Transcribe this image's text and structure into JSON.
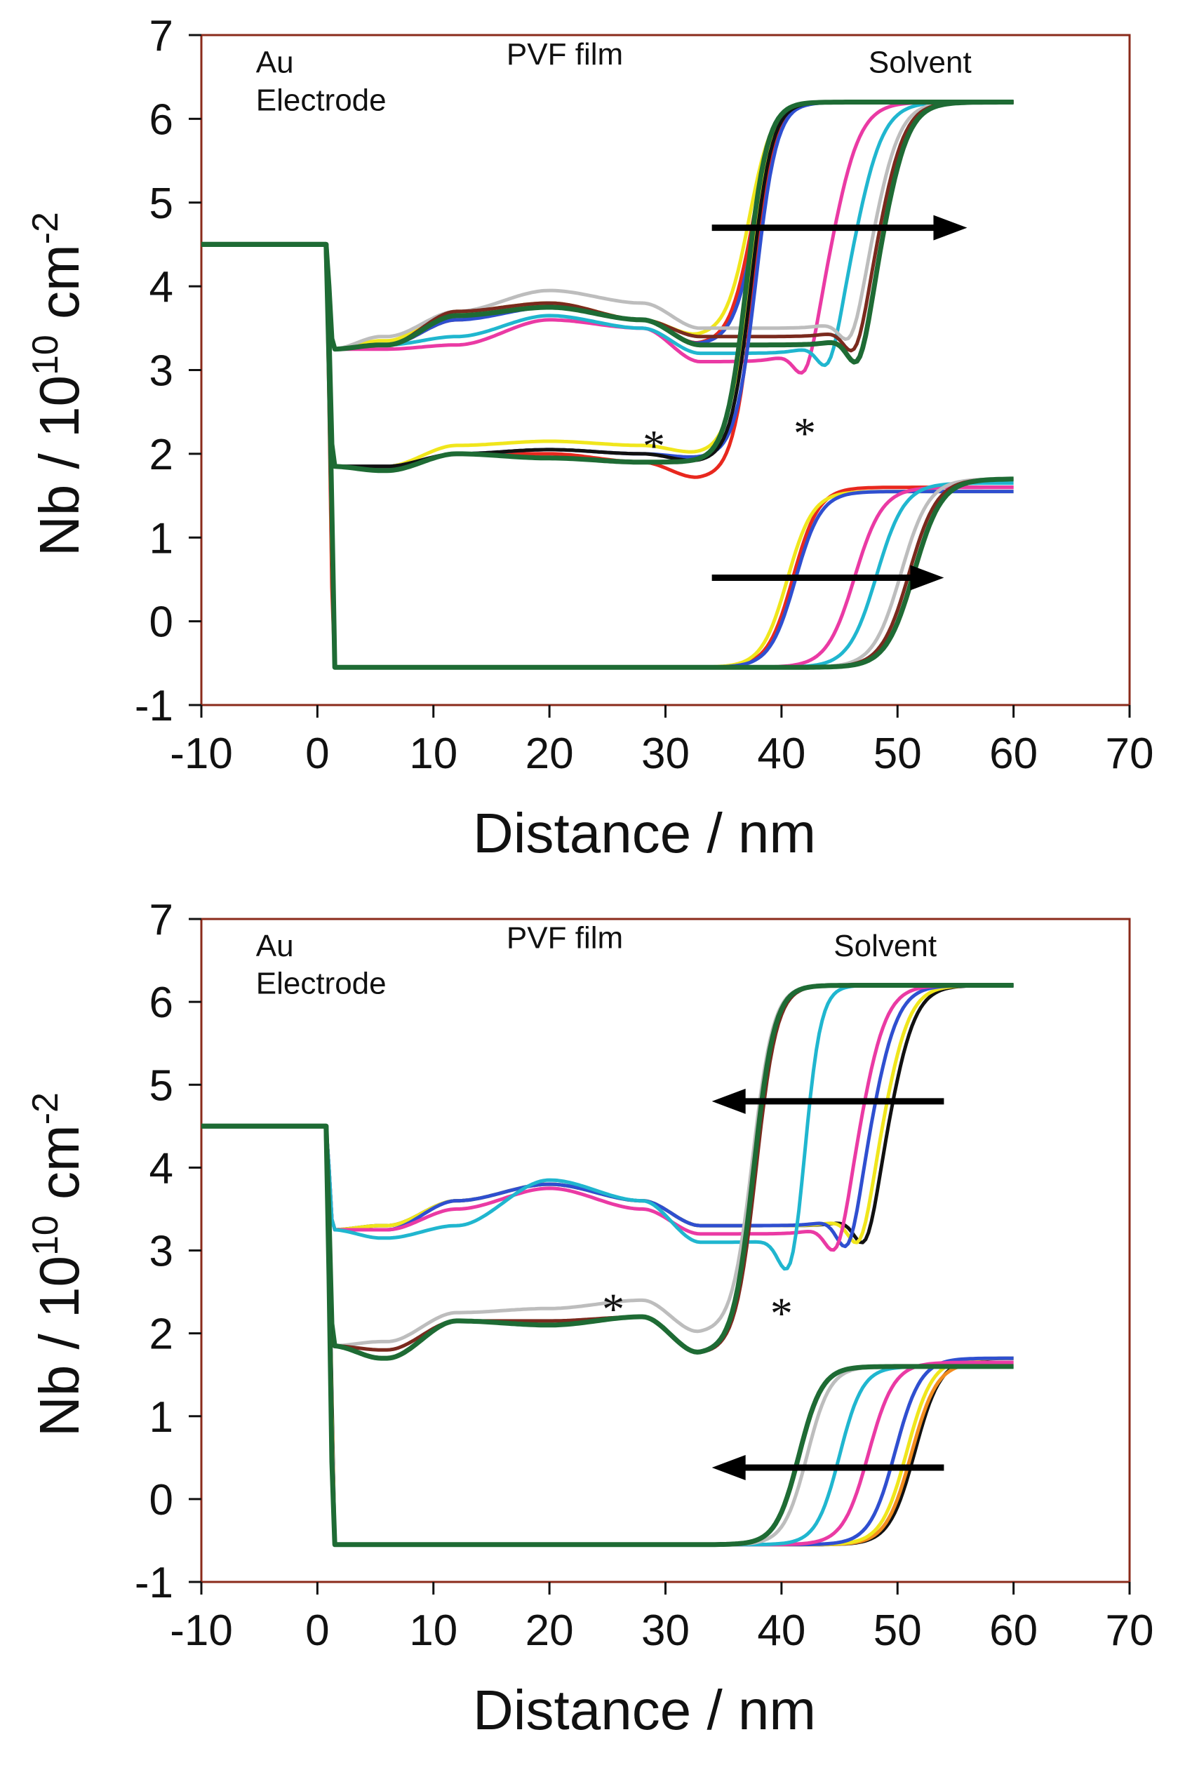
{
  "figure": "Two-panel neutron reflectivity SLD profiles of a PVF film on an Au electrode",
  "colors": {
    "red": "#e8281e",
    "black": "#111111",
    "orange": "#f28c1e",
    "yellow": "#f0e61c",
    "blue": "#2f4fd0",
    "magenta": "#ea3aa4",
    "cyan": "#20b6cf",
    "gray": "#bdbdbd",
    "brown": "#7a2a1e",
    "green": "#1e6b34"
  },
  "chart_data": [
    {
      "type": "line",
      "panel": "top",
      "xlabel": "Distance / nm",
      "ylabel": "Nb / 10",
      "ylabel_sup": "10",
      "ylabel_unit": " cm",
      "ylabel_unit_sup": "-2",
      "xlim": [
        -10,
        70
      ],
      "ylim": [
        -1,
        7
      ],
      "xticks": [
        "-10",
        "0",
        "10",
        "20",
        "30",
        "40",
        "50",
        "60",
        "70"
      ],
      "yticks": [
        "-1",
        "0",
        "1",
        "2",
        "3",
        "4",
        "5",
        "6",
        "7"
      ],
      "regions": {
        "electrode_line1": "Au",
        "electrode_line2": "Electrode",
        "film": "PVF film",
        "solvent": "Solvent"
      },
      "markers": [
        {
          "text": "*",
          "x": 29,
          "y": 2.25
        },
        {
          "text": "*",
          "x": 42,
          "y": 2.4
        }
      ],
      "arrows": [
        {
          "direction": "right",
          "x_start": 34,
          "x_end": 56,
          "y": 4.7
        },
        {
          "direction": "right",
          "x_start": 34,
          "x_end": 54,
          "y": 0.52
        }
      ],
      "curves": [
        {
          "family": "upper",
          "color": "red",
          "s": 37.5,
          "d": 1.0,
          "mid": [
            3.3,
            3.6,
            3.8,
            3.6,
            3.3
          ],
          "dip": 0
        },
        {
          "family": "upper",
          "color": "yellow",
          "s": 37.2,
          "d": 1.0,
          "mid": [
            3.35,
            3.7,
            3.8,
            3.6,
            3.4
          ],
          "dip": 0
        },
        {
          "family": "upper",
          "color": "blue",
          "s": 37.8,
          "d": 1.0,
          "mid": [
            3.3,
            3.6,
            3.75,
            3.6,
            3.3
          ],
          "dip": 0
        },
        {
          "family": "upper",
          "color": "magenta",
          "s": 44.5,
          "d": 1.2,
          "mid": [
            3.25,
            3.3,
            3.6,
            3.5,
            3.1
          ],
          "dip": 0.45
        },
        {
          "family": "upper",
          "color": "cyan",
          "s": 46.5,
          "d": 1.2,
          "mid": [
            3.3,
            3.4,
            3.65,
            3.5,
            3.2
          ],
          "dip": 0.45
        },
        {
          "family": "upper",
          "color": "gray",
          "s": 48.2,
          "d": 1.1,
          "mid": [
            3.4,
            3.7,
            3.95,
            3.8,
            3.5
          ],
          "dip": 0.4
        },
        {
          "family": "upper",
          "color": "brown",
          "s": 48.6,
          "d": 1.1,
          "mid": [
            3.3,
            3.7,
            3.8,
            3.6,
            3.4
          ],
          "dip": 0.45
        },
        {
          "family": "upper",
          "color": "green",
          "s": 48.9,
          "d": 1.1,
          "mid": [
            3.3,
            3.65,
            3.75,
            3.6,
            3.3
          ],
          "dip": 0.5
        },
        {
          "family": "middle",
          "color": "red",
          "s": 37.6,
          "d": 0.9,
          "mid": [
            1.85,
            2.0,
            2.0,
            1.9,
            1.7
          ],
          "dip": 0
        },
        {
          "family": "middle",
          "color": "yellow",
          "s": 37.2,
          "d": 0.9,
          "mid": [
            1.85,
            2.1,
            2.15,
            2.1,
            2.0
          ],
          "dip": 0
        },
        {
          "family": "middle",
          "color": "blue",
          "s": 37.8,
          "d": 0.9,
          "mid": [
            1.85,
            2.0,
            2.05,
            2.0,
            1.95
          ],
          "dip": 0
        },
        {
          "family": "middle",
          "color": "black",
          "s": 37.4,
          "d": 0.9,
          "mid": [
            1.85,
            2.0,
            2.05,
            2.0,
            1.9
          ],
          "dip": 0
        },
        {
          "family": "middle",
          "color": "green",
          "s": 37.0,
          "d": 0.9,
          "mid": [
            1.8,
            2.0,
            1.95,
            1.9,
            1.9
          ],
          "dip": 0
        },
        {
          "family": "lower",
          "color": "red",
          "s": 41.0,
          "d": -1.1,
          "mid": [
            1.4,
            1.45,
            1.5,
            1.55,
            1.6
          ],
          "dip": 0,
          "s0": -0.05
        },
        {
          "family": "lower",
          "color": "yellow",
          "s": 40.5,
          "d": -1.1,
          "mid": [
            1.4,
            1.45,
            1.45,
            1.5,
            1.55
          ],
          "dip": 0,
          "s0": 0.45
        },
        {
          "family": "lower",
          "color": "blue",
          "s": 41.2,
          "d": -1.1,
          "mid": [
            1.4,
            1.45,
            1.45,
            1.5,
            1.55
          ],
          "dip": 0,
          "s0": 0.6
        },
        {
          "family": "lower",
          "color": "magenta",
          "s": 46.3,
          "d": -1.2,
          "mid": [
            1.35,
            1.35,
            1.45,
            1.5,
            1.6
          ],
          "dip": 0,
          "s0": 0.8
        },
        {
          "family": "lower",
          "color": "cyan",
          "s": 48.2,
          "d": -1.2,
          "mid": [
            1.35,
            1.35,
            1.45,
            1.5,
            1.65
          ],
          "dip": 0,
          "s0": 0.85
        },
        {
          "family": "lower",
          "color": "gray",
          "s": 50.3,
          "d": -1.2,
          "mid": [
            1.35,
            1.3,
            1.4,
            1.55,
            1.7
          ],
          "dip": 0,
          "s0": 0.9
        },
        {
          "family": "lower",
          "color": "brown",
          "s": 51.0,
          "d": -1.2,
          "mid": [
            1.3,
            1.25,
            1.3,
            1.5,
            1.7
          ],
          "dip": 0,
          "s0": 1.0
        },
        {
          "family": "lower",
          "color": "green",
          "s": 51.4,
          "d": -1.2,
          "mid": [
            1.3,
            1.2,
            1.2,
            1.5,
            1.7
          ],
          "dip": 0,
          "s0": 1.0
        }
      ]
    },
    {
      "type": "line",
      "panel": "bottom",
      "xlabel": "Distance / nm",
      "ylabel": "Nb / 10",
      "ylabel_sup": "10",
      "ylabel_unit": " cm",
      "ylabel_unit_sup": "-2",
      "xlim": [
        -10,
        70
      ],
      "ylim": [
        -1,
        7
      ],
      "xticks": [
        "-10",
        "0",
        "10",
        "20",
        "30",
        "40",
        "50",
        "60",
        "70"
      ],
      "yticks": [
        "-1",
        "0",
        "1",
        "2",
        "3",
        "4",
        "5",
        "6",
        "7"
      ],
      "regions": {
        "electrode_line1": "Au",
        "electrode_line2": "Electrode",
        "film": "PVF film",
        "solvent": "Solvent"
      },
      "markers": [
        {
          "text": "*",
          "x": 25.5,
          "y": 2.45
        },
        {
          "text": "*",
          "x": 40,
          "y": 2.4
        }
      ],
      "arrows": [
        {
          "direction": "left",
          "x_start": 54,
          "x_end": 34,
          "y": 4.8
        },
        {
          "direction": "left",
          "x_start": 54,
          "x_end": 34,
          "y": 0.38
        }
      ],
      "curves": [
        {
          "family": "upper",
          "color": "black",
          "s": 49.5,
          "d": 1.1,
          "mid": [
            3.3,
            3.6,
            3.8,
            3.6,
            3.3
          ],
          "dip": 0.5
        },
        {
          "family": "upper",
          "color": "yellow",
          "s": 49.0,
          "d": 1.1,
          "mid": [
            3.3,
            3.6,
            3.8,
            3.6,
            3.3
          ],
          "dip": 0.5
        },
        {
          "family": "upper",
          "color": "blue",
          "s": 48.0,
          "d": 1.1,
          "mid": [
            3.25,
            3.6,
            3.8,
            3.6,
            3.3
          ],
          "dip": 0.55
        },
        {
          "family": "upper",
          "color": "magenta",
          "s": 47.0,
          "d": 1.1,
          "mid": [
            3.25,
            3.5,
            3.75,
            3.5,
            3.2
          ],
          "dip": 0.5
        },
        {
          "family": "upper",
          "color": "cyan",
          "s": 42.2,
          "d": 0.7,
          "mid": [
            3.15,
            3.3,
            3.85,
            3.6,
            3.1
          ],
          "dip": 0.6
        },
        {
          "family": "middle",
          "color": "gray",
          "s": 37.5,
          "d": 0.9,
          "mid": [
            1.9,
            2.25,
            2.3,
            2.4,
            2.0
          ],
          "dip": 0
        },
        {
          "family": "middle",
          "color": "brown",
          "s": 37.8,
          "d": 0.9,
          "mid": [
            1.8,
            2.15,
            2.15,
            2.2,
            1.75
          ],
          "dip": 0
        },
        {
          "family": "middle",
          "color": "green",
          "s": 37.6,
          "d": 0.9,
          "mid": [
            1.7,
            2.15,
            2.1,
            2.2,
            1.75
          ],
          "dip": 0
        },
        {
          "family": "lower",
          "color": "black",
          "s": 51.5,
          "d": -1.1,
          "mid": [
            1.5,
            1.45,
            1.5,
            1.55,
            1.7
          ],
          "dip": 0,
          "s0": 0.9
        },
        {
          "family": "lower",
          "color": "orange",
          "s": 51.2,
          "d": -1.1,
          "mid": [
            1.4,
            1.35,
            1.3,
            1.5,
            1.65
          ],
          "dip": 0,
          "s0": 0.7
        },
        {
          "family": "lower",
          "color": "yellow",
          "s": 50.8,
          "d": -1.1,
          "mid": [
            1.4,
            1.4,
            1.45,
            1.5,
            1.7
          ],
          "dip": 0,
          "s0": 0.6
        },
        {
          "family": "lower",
          "color": "blue",
          "s": 49.8,
          "d": -1.1,
          "mid": [
            1.4,
            1.4,
            1.45,
            1.5,
            1.7
          ],
          "dip": 0,
          "s0": 0.5
        },
        {
          "family": "lower",
          "color": "magenta",
          "s": 47.5,
          "d": -1.1,
          "mid": [
            1.4,
            1.4,
            1.45,
            1.5,
            1.65
          ],
          "dip": 0,
          "s0": 0.3
        },
        {
          "family": "lower",
          "color": "cyan",
          "s": 45.0,
          "d": -1.0,
          "mid": [
            1.4,
            1.45,
            1.5,
            1.5,
            1.6
          ],
          "dip": 0,
          "s0": 0.2
        },
        {
          "family": "lower",
          "color": "gray",
          "s": 42.2,
          "d": -1.0,
          "mid": [
            1.4,
            1.45,
            1.5,
            1.55,
            1.6
          ],
          "dip": 0,
          "s0": 0.05
        },
        {
          "family": "lower",
          "color": "green",
          "s": 41.5,
          "d": -1.0,
          "mid": [
            1.35,
            1.45,
            1.55,
            1.6,
            1.6
          ],
          "dip": 0,
          "s0": 0.0
        }
      ]
    }
  ]
}
